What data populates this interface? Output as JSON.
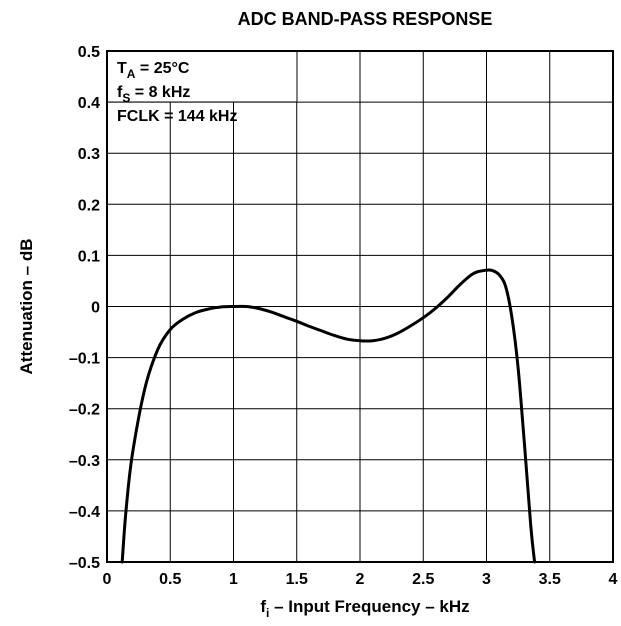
{
  "chart_data": {
    "type": "line",
    "title": "ADC BAND-PASS RESPONSE",
    "xlabel": {
      "main": "f",
      "sub": "i",
      "rest": " – Input Frequency – kHz"
    },
    "ylabel": "Attenuation – dB",
    "xlim": [
      0,
      4
    ],
    "ylim": [
      -0.5,
      0.5
    ],
    "xticks": [
      0,
      0.5,
      1,
      1.5,
      2,
      2.5,
      3,
      3.5,
      4
    ],
    "xtick_labels": [
      "0",
      "0.5",
      "1",
      "1.5",
      "2",
      "2.5",
      "3",
      "3.5",
      "4"
    ],
    "yticks": [
      0.5,
      0.4,
      0.3,
      0.2,
      0.1,
      0,
      -0.1,
      -0.2,
      -0.3,
      -0.4,
      -0.5
    ],
    "ytick_labels": [
      "0.5",
      "0.4",
      "0.3",
      "0.2",
      "0.1",
      "0",
      "–0.1",
      "–0.2",
      "–0.3",
      "–0.4",
      "–0.5"
    ],
    "grid": true,
    "annotations": [
      {
        "main": "T",
        "sub": "A",
        "rest": " = 25°C"
      },
      {
        "main": "f",
        "sub": "S",
        "rest": " = 8 kHz"
      },
      {
        "main": "FCLK = 144 kHz",
        "sub": "",
        "rest": ""
      }
    ],
    "series": [
      {
        "x": [
          0.12,
          0.15,
          0.2,
          0.3,
          0.4,
          0.5,
          0.6,
          0.7,
          0.8,
          0.9,
          1.0,
          1.1,
          1.2,
          1.3,
          1.4,
          1.5,
          1.6,
          1.7,
          1.8,
          1.9,
          2.0,
          2.1,
          2.2,
          2.3,
          2.4,
          2.5,
          2.6,
          2.7,
          2.8,
          2.9,
          3.0,
          3.05,
          3.1,
          3.15,
          3.2,
          3.25,
          3.3,
          3.35,
          3.38
        ],
        "y": [
          -0.5,
          -0.4,
          -0.29,
          -0.16,
          -0.085,
          -0.045,
          -0.025,
          -0.012,
          -0.005,
          -0.001,
          0.0,
          0.0,
          -0.004,
          -0.011,
          -0.02,
          -0.029,
          -0.039,
          -0.048,
          -0.057,
          -0.064,
          -0.067,
          -0.067,
          -0.062,
          -0.052,
          -0.038,
          -0.022,
          -0.003,
          0.02,
          0.045,
          0.065,
          0.071,
          0.07,
          0.062,
          0.04,
          -0.02,
          -0.12,
          -0.27,
          -0.43,
          -0.5
        ]
      }
    ]
  }
}
